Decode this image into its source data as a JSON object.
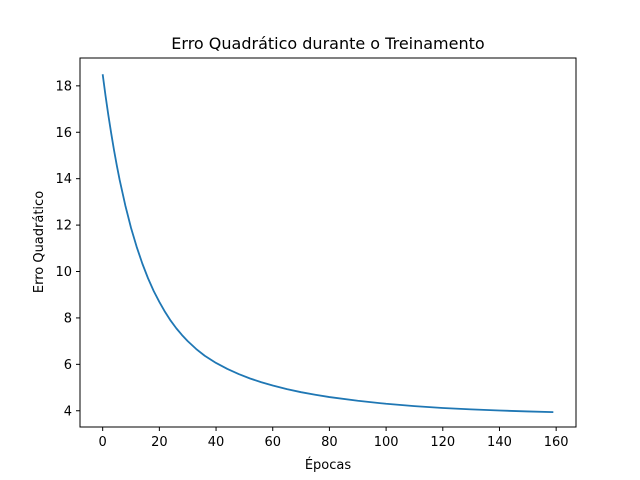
{
  "chart_data": {
    "type": "line",
    "title": "Erro Quadrático durante o Treinamento",
    "xlabel": "Épocas",
    "ylabel": "Erro Quadrático",
    "xlim": [
      -8,
      167
    ],
    "ylim": [
      3.3,
      19.2
    ],
    "xticks": [
      0,
      20,
      40,
      60,
      80,
      100,
      120,
      140,
      160
    ],
    "yticks": [
      4,
      6,
      8,
      10,
      12,
      14,
      16,
      18
    ],
    "grid": false,
    "series": [
      {
        "color": "#1f77b4",
        "x": [
          0,
          1,
          2,
          3,
          4,
          5,
          6,
          8,
          10,
          12,
          14,
          16,
          18,
          20,
          22,
          24,
          26,
          28,
          30,
          33,
          36,
          40,
          44,
          48,
          52,
          56,
          60,
          65,
          70,
          75,
          80,
          90,
          100,
          110,
          120,
          130,
          140,
          150,
          159
        ],
        "y": [
          18.5,
          17.58,
          16.74,
          15.96,
          15.23,
          14.56,
          13.94,
          12.84,
          11.88,
          11.06,
          10.34,
          9.71,
          9.16,
          8.69,
          8.26,
          7.88,
          7.55,
          7.26,
          7.0,
          6.66,
          6.37,
          6.06,
          5.8,
          5.58,
          5.39,
          5.23,
          5.09,
          4.93,
          4.8,
          4.69,
          4.59,
          4.43,
          4.3,
          4.2,
          4.12,
          4.06,
          4.01,
          3.97,
          3.94
        ]
      }
    ]
  }
}
